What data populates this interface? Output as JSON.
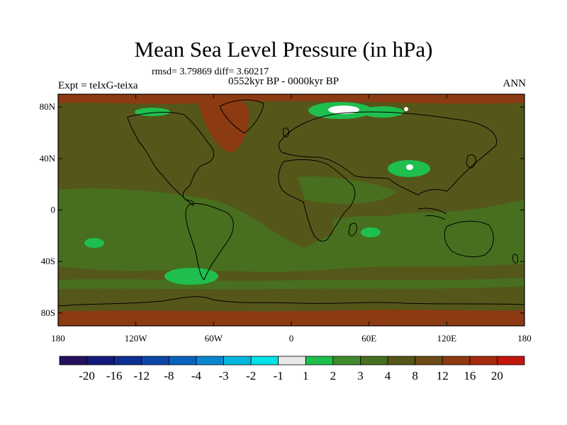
{
  "title": "Mean Sea Level Pressure (in hPa)",
  "stats_text": "rmsd= 3.79869 diff= 3.60217",
  "expt_text": "Expt = teIxG-teixa",
  "period_text": "0552kyr BP - 0000kyr BP",
  "season_text": "ANN",
  "lat_ticks": [
    "80N",
    "40N",
    "0",
    "40S",
    "80S"
  ],
  "lon_ticks": [
    "180",
    "120W",
    "60W",
    "0",
    "60E",
    "120E",
    "180"
  ],
  "colorbar": {
    "colors": [
      "#24105c",
      "#121a7c",
      "#0f2f92",
      "#0c47a8",
      "#0a64bd",
      "#0a86cf",
      "#00b7dd",
      "#00e2e6",
      "#e8e8e8",
      "#1fbf4f",
      "#3f8a2a",
      "#476f1f",
      "#55561a",
      "#6e4b14",
      "#8c3a12",
      "#a42a10",
      "#c0160c"
    ],
    "labels": [
      "-20",
      "-16",
      "-12",
      "-8",
      "-4",
      "-3",
      "-2",
      "-1",
      "1",
      "2",
      "3",
      "4",
      "8",
      "12",
      "16",
      "20"
    ]
  },
  "colors": {
    "field_base": "#55561a",
    "field_green": "#476f1f",
    "field_light_green": "#1fbf4f",
    "field_red": "#8c3a12",
    "field_white": "#ffffff"
  }
}
